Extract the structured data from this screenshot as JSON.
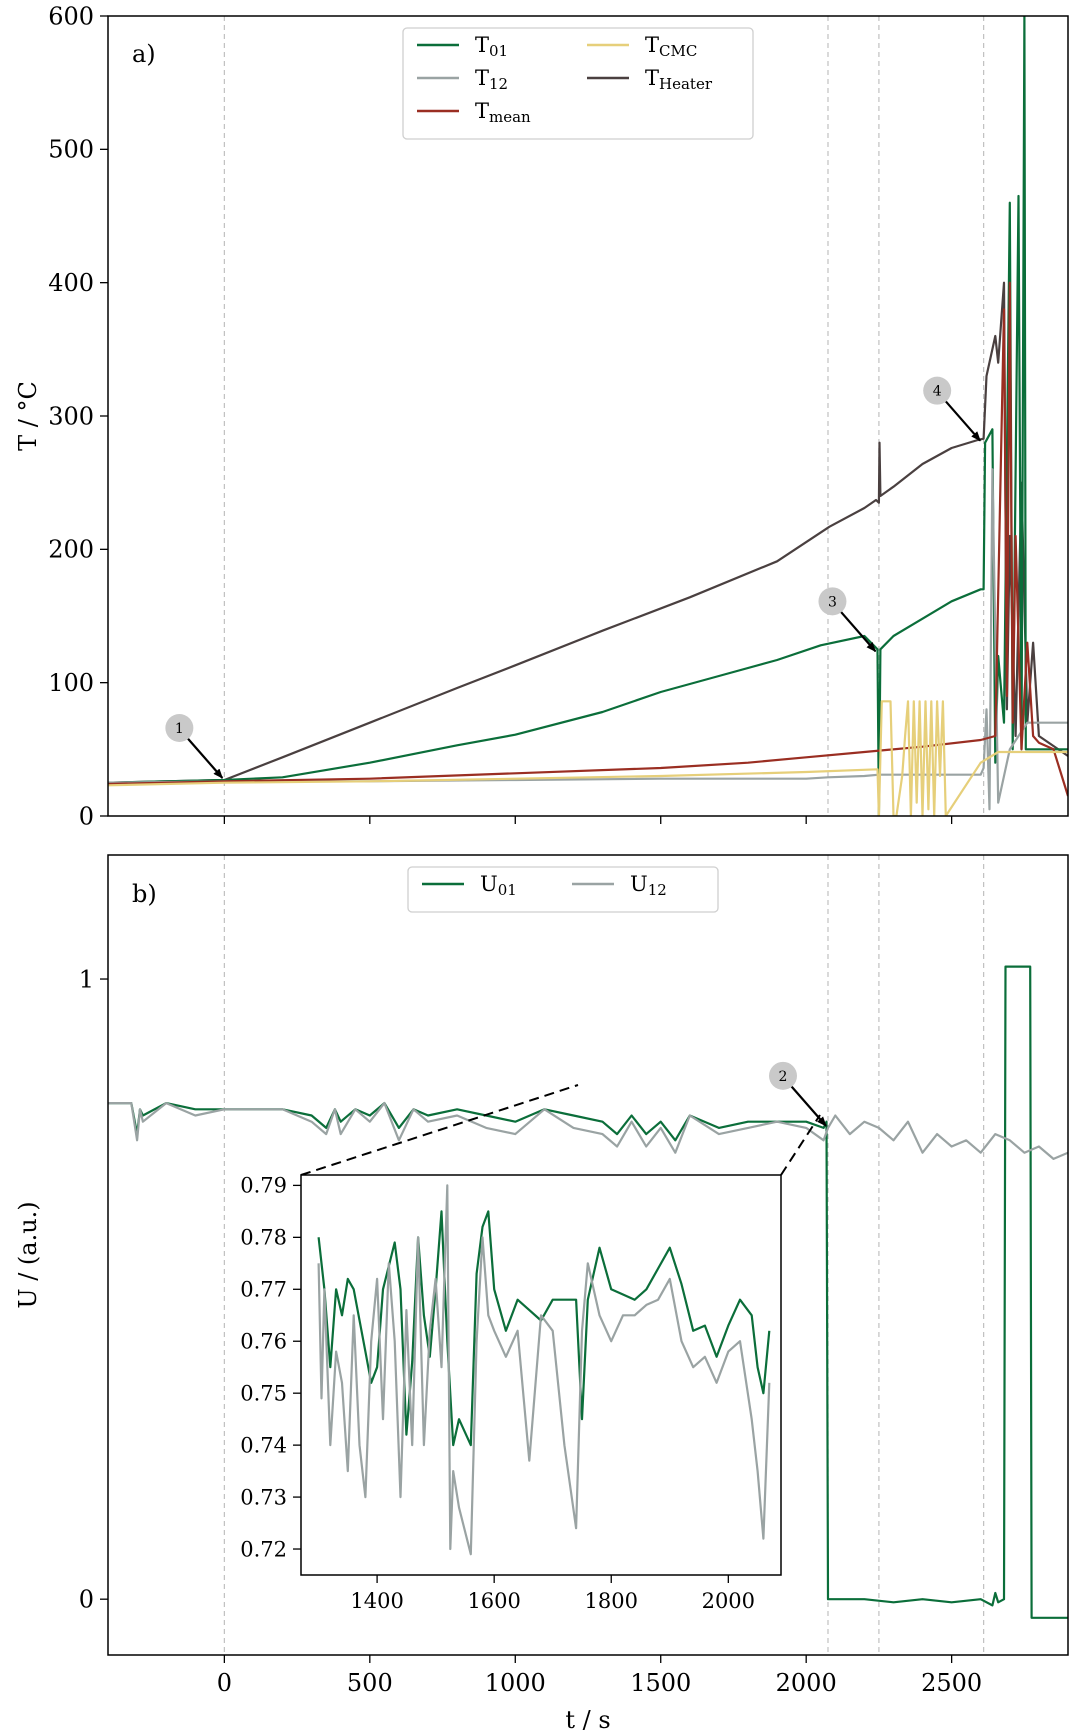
{
  "figure": {
    "x_axis_label": "t / s",
    "annotations": [
      "1",
      "2",
      "3",
      "4"
    ],
    "colors": {
      "T01": "#0b6e3a",
      "T12": "#9aa3a3",
      "Tmean": "#9a2e22",
      "TCMC": "#e6cf7a",
      "THeater": "#4a4040",
      "marker": "#c9c9c9",
      "vline": "#c0c0c0"
    }
  },
  "chart_data": [
    {
      "type": "line",
      "panel_label": "a)",
      "ylabel": "T / °C",
      "xlim": [
        -400,
        2900
      ],
      "ylim": [
        0,
        600
      ],
      "xticks": [
        0,
        500,
        1000,
        1500,
        2000,
        2500
      ],
      "yticks": [
        0,
        100,
        200,
        300,
        400,
        500,
        600
      ],
      "vlines": [
        0,
        2075,
        2250,
        2610
      ],
      "legend": {
        "placement": "top-center",
        "entries": [
          {
            "key": "T01",
            "base": "T",
            "sub": "01"
          },
          {
            "key": "T12",
            "base": "T",
            "sub": "12"
          },
          {
            "key": "Tmean",
            "base": "T",
            "sub": "mean"
          },
          {
            "key": "TCMC",
            "base": "T",
            "sub": "CMC"
          },
          {
            "key": "THeater",
            "base": "T",
            "sub": "Heater"
          }
        ]
      },
      "series": [
        {
          "key": "THeater",
          "x": [
            -400,
            0,
            200,
            500,
            800,
            1000,
            1300,
            1600,
            1900,
            2080,
            2200,
            2240,
            2250,
            2252,
            2255,
            2300,
            2400,
            2500,
            2590,
            2610,
            2620,
            2650,
            2660,
            2680,
            2690,
            2700,
            2720,
            2740,
            2760,
            2780,
            2800,
            2900
          ],
          "y": [
            25,
            27,
            44,
            70,
            96,
            113,
            139,
            164,
            191,
            217,
            231,
            237,
            235,
            280,
            240,
            247,
            264,
            276,
            282,
            283,
            330,
            360,
            340,
            400,
            80,
            210,
            60,
            250,
            70,
            130,
            60,
            45
          ]
        },
        {
          "key": "T01",
          "x": [
            -400,
            0,
            200,
            500,
            800,
            1000,
            1300,
            1500,
            1700,
            1900,
            2050,
            2200,
            2245,
            2250,
            2255,
            2300,
            2400,
            2500,
            2600,
            2610,
            2615,
            2640,
            2650,
            2660,
            2680,
            2700,
            2710,
            2730,
            2740,
            2750,
            2755,
            2760,
            2900
          ],
          "y": [
            25,
            27,
            29,
            40,
            53,
            61,
            78,
            93,
            105,
            117,
            128,
            135,
            125,
            0,
            125,
            135,
            148,
            161,
            170,
            170,
            280,
            290,
            40,
            120,
            70,
            460,
            50,
            465,
            50,
            600,
            50,
            50,
            50
          ]
        },
        {
          "key": "T12",
          "x": [
            -400,
            0,
            500,
            1000,
            1500,
            1800,
            2000,
            2075,
            2200,
            2250,
            2400,
            2600,
            2610,
            2620,
            2630,
            2640,
            2660,
            2700,
            2760,
            2800,
            2900
          ],
          "y": [
            25,
            26,
            26,
            27,
            28,
            28,
            28,
            29,
            30,
            31,
            31,
            31,
            36,
            80,
            5,
            260,
            10,
            50,
            70,
            70,
            70
          ]
        },
        {
          "key": "Tmean",
          "x": [
            -400,
            0,
            500,
            1000,
            1500,
            1800,
            2000,
            2200,
            2400,
            2600,
            2650,
            2680,
            2690,
            2700,
            2710,
            2720,
            2740,
            2760,
            2780,
            2800,
            2850,
            2900
          ],
          "y": [
            24,
            26,
            28,
            32,
            36,
            40,
            44,
            48,
            52,
            57,
            60,
            380,
            90,
            400,
            70,
            210,
            50,
            130,
            60,
            55,
            50,
            15
          ]
        },
        {
          "key": "TCMC",
          "x": [
            -400,
            0,
            500,
            1000,
            1500,
            2000,
            2245,
            2250,
            2260,
            2290,
            2300,
            2310,
            2330,
            2340,
            2350,
            2360,
            2370,
            2380,
            2390,
            2400,
            2410,
            2420,
            2430,
            2440,
            2450,
            2460,
            2470,
            2480,
            2600,
            2660,
            2700,
            2900
          ],
          "y": [
            23,
            25,
            26,
            28,
            30,
            33,
            35,
            0,
            86,
            86,
            0,
            0,
            30,
            60,
            86,
            0,
            86,
            10,
            86,
            0,
            86,
            5,
            86,
            0,
            86,
            30,
            86,
            0,
            40,
            48,
            48,
            48
          ]
        }
      ],
      "annotations": [
        {
          "label": "1",
          "x": 0,
          "y": 27
        },
        {
          "label": "3",
          "x": 2245,
          "y": 122
        },
        {
          "label": "4",
          "x": 2605,
          "y": 280
        }
      ]
    },
    {
      "type": "line",
      "panel_label": "b)",
      "ylabel": "U / (a.u.)",
      "xlim": [
        -400,
        2900
      ],
      "ylim": [
        -0.09,
        1.2
      ],
      "yticks": [
        0,
        1
      ],
      "vlines": [
        0,
        2075,
        2250,
        2610
      ],
      "legend": {
        "placement": "top-center",
        "entries": [
          {
            "key": "T01",
            "base": "U",
            "sub": "01"
          },
          {
            "key": "T12",
            "base": "U",
            "sub": "12"
          }
        ]
      },
      "series": [
        {
          "key": "T01",
          "name": "U01",
          "x": [
            -400,
            -320,
            -300,
            -290,
            -280,
            -200,
            -100,
            0,
            100,
            200,
            300,
            350,
            380,
            400,
            450,
            500,
            550,
            600,
            650,
            700,
            800,
            900,
            1000,
            1100,
            1200,
            1300,
            1350,
            1400,
            1450,
            1500,
            1550,
            1600,
            1700,
            1800,
            1900,
            2000,
            2060,
            2070,
            2075,
            2080,
            2100,
            2200,
            2300,
            2400,
            2500,
            2600,
            2640,
            2650,
            2660,
            2680,
            2685,
            2700,
            2770,
            2775,
            2780,
            2900
          ],
          "y": [
            0.8,
            0.8,
            0.75,
            0.79,
            0.78,
            0.8,
            0.79,
            0.79,
            0.79,
            0.79,
            0.78,
            0.76,
            0.79,
            0.77,
            0.79,
            0.78,
            0.8,
            0.76,
            0.79,
            0.78,
            0.79,
            0.78,
            0.77,
            0.79,
            0.78,
            0.77,
            0.75,
            0.78,
            0.75,
            0.77,
            0.74,
            0.78,
            0.76,
            0.77,
            0.77,
            0.77,
            0.76,
            0.77,
            0.0,
            0.0,
            0.0,
            0.0,
            -0.005,
            0.0,
            -0.005,
            0.0,
            -0.01,
            0.01,
            -0.005,
            0.0,
            1.02,
            1.02,
            1.02,
            -0.03,
            -0.03,
            -0.03
          ]
        },
        {
          "key": "T12",
          "name": "U12",
          "x": [
            -400,
            -320,
            -300,
            -290,
            -280,
            -200,
            -100,
            0,
            100,
            200,
            300,
            350,
            380,
            400,
            450,
            500,
            550,
            600,
            650,
            700,
            800,
            900,
            1000,
            1100,
            1200,
            1300,
            1350,
            1400,
            1450,
            1500,
            1550,
            1600,
            1700,
            1800,
            1900,
            2000,
            2060,
            2075,
            2100,
            2150,
            2200,
            2250,
            2300,
            2350,
            2400,
            2450,
            2500,
            2550,
            2600,
            2650,
            2700,
            2750,
            2800,
            2850,
            2900
          ],
          "y": [
            0.8,
            0.8,
            0.74,
            0.79,
            0.77,
            0.8,
            0.78,
            0.79,
            0.79,
            0.79,
            0.77,
            0.75,
            0.79,
            0.75,
            0.79,
            0.77,
            0.8,
            0.74,
            0.79,
            0.77,
            0.78,
            0.76,
            0.75,
            0.79,
            0.76,
            0.75,
            0.73,
            0.77,
            0.73,
            0.76,
            0.72,
            0.78,
            0.75,
            0.76,
            0.77,
            0.76,
            0.74,
            0.76,
            0.78,
            0.75,
            0.77,
            0.76,
            0.74,
            0.77,
            0.72,
            0.75,
            0.73,
            0.74,
            0.72,
            0.75,
            0.74,
            0.72,
            0.73,
            0.71,
            0.72
          ]
        }
      ],
      "annotations": [
        {
          "label": "2",
          "x": 2075,
          "y": 0.76
        }
      ]
    },
    {
      "type": "line",
      "panel_label": "",
      "inset_of": "b)",
      "xlim": [
        1270,
        2090
      ],
      "ylim": [
        0.715,
        0.792
      ],
      "xticks": [
        1400,
        1600,
        1800,
        2000
      ],
      "yticks": [
        0.72,
        0.73,
        0.74,
        0.75,
        0.76,
        0.77,
        0.78,
        0.79
      ],
      "series": [
        {
          "key": "T01",
          "name": "U01",
          "x": [
            1300,
            1310,
            1320,
            1330,
            1340,
            1350,
            1360,
            1380,
            1390,
            1400,
            1410,
            1430,
            1440,
            1450,
            1460,
            1470,
            1480,
            1490,
            1500,
            1510,
            1520,
            1530,
            1540,
            1560,
            1570,
            1580,
            1590,
            1600,
            1620,
            1640,
            1660,
            1680,
            1700,
            1720,
            1740,
            1750,
            1760,
            1780,
            1800,
            1820,
            1840,
            1860,
            1880,
            1900,
            1920,
            1940,
            1960,
            1980,
            2000,
            2020,
            2040,
            2050,
            2060,
            2070
          ],
          "y": [
            0.78,
            0.77,
            0.755,
            0.77,
            0.765,
            0.772,
            0.77,
            0.758,
            0.752,
            0.755,
            0.77,
            0.779,
            0.77,
            0.742,
            0.756,
            0.78,
            0.765,
            0.757,
            0.77,
            0.785,
            0.76,
            0.74,
            0.745,
            0.74,
            0.773,
            0.782,
            0.785,
            0.77,
            0.762,
            0.768,
            0.766,
            0.764,
            0.768,
            0.768,
            0.768,
            0.745,
            0.768,
            0.778,
            0.77,
            0.769,
            0.768,
            0.77,
            0.774,
            0.778,
            0.771,
            0.762,
            0.763,
            0.757,
            0.763,
            0.768,
            0.765,
            0.755,
            0.75,
            0.762
          ]
        },
        {
          "key": "T12",
          "name": "U12",
          "x": [
            1300,
            1305,
            1310,
            1320,
            1330,
            1340,
            1350,
            1360,
            1370,
            1380,
            1390,
            1400,
            1410,
            1420,
            1430,
            1440,
            1450,
            1460,
            1470,
            1480,
            1490,
            1500,
            1510,
            1520,
            1525,
            1530,
            1540,
            1560,
            1570,
            1580,
            1590,
            1600,
            1620,
            1640,
            1660,
            1680,
            1700,
            1720,
            1740,
            1750,
            1760,
            1780,
            1800,
            1820,
            1840,
            1860,
            1880,
            1900,
            1920,
            1940,
            1960,
            1980,
            2000,
            2020,
            2040,
            2050,
            2060,
            2070
          ],
          "y": [
            0.775,
            0.749,
            0.77,
            0.74,
            0.758,
            0.752,
            0.735,
            0.765,
            0.74,
            0.73,
            0.76,
            0.772,
            0.745,
            0.775,
            0.76,
            0.73,
            0.766,
            0.74,
            0.78,
            0.74,
            0.762,
            0.772,
            0.755,
            0.79,
            0.72,
            0.735,
            0.728,
            0.719,
            0.76,
            0.78,
            0.765,
            0.762,
            0.757,
            0.762,
            0.737,
            0.765,
            0.762,
            0.74,
            0.724,
            0.762,
            0.775,
            0.765,
            0.76,
            0.765,
            0.765,
            0.767,
            0.768,
            0.772,
            0.76,
            0.755,
            0.757,
            0.752,
            0.758,
            0.76,
            0.745,
            0.735,
            0.722,
            0.752
          ]
        }
      ]
    }
  ]
}
